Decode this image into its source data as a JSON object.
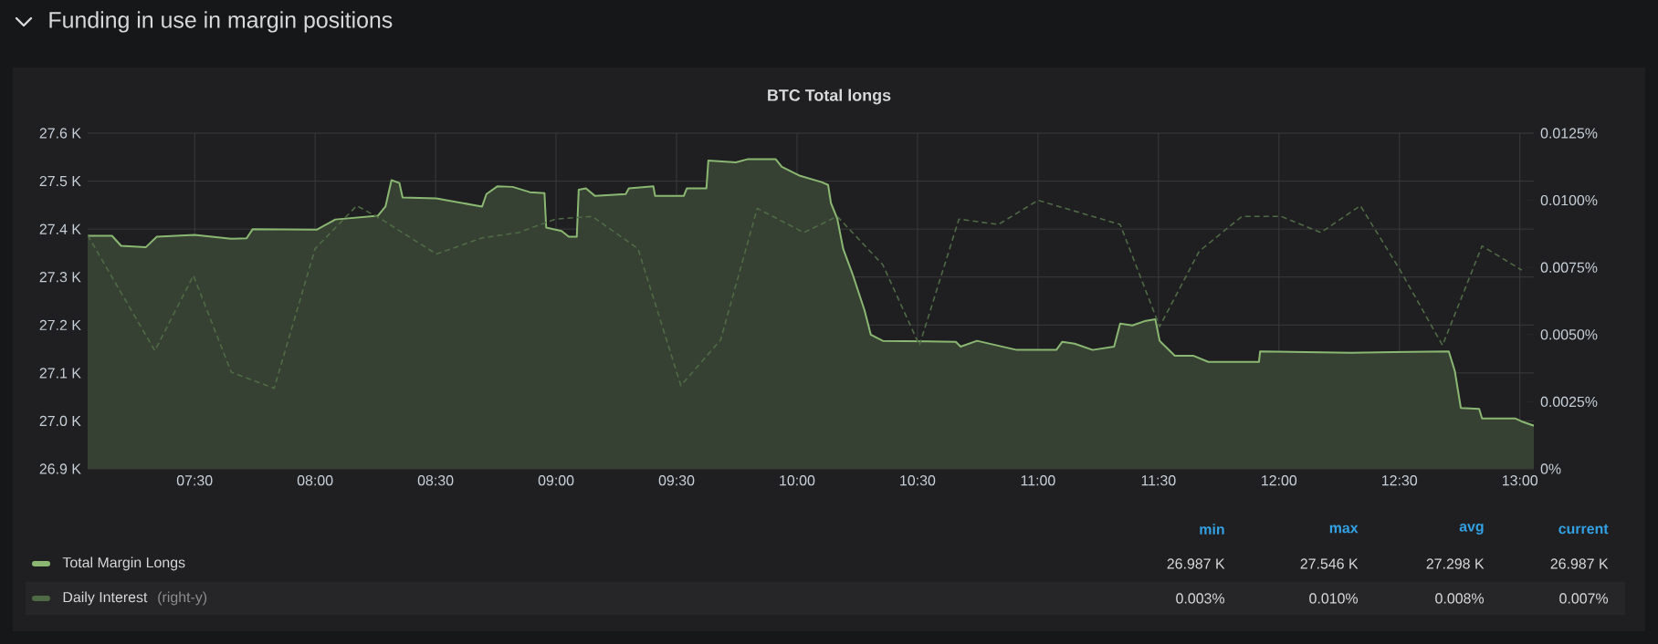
{
  "chart_data": {
    "type": "area",
    "title": "Funding in use in margin positions",
    "subtitle": "BTC Total longs",
    "xlim": [
      7.056,
      13.058
    ],
    "xticks": [
      {
        "value": 7.5,
        "label": "07:30"
      },
      {
        "value": 8,
        "label": "08:00"
      },
      {
        "value": 8.5,
        "label": "08:30"
      },
      {
        "value": 9,
        "label": "09:00"
      },
      {
        "value": 9.5,
        "label": "09:30"
      },
      {
        "value": 10,
        "label": "10:00"
      },
      {
        "value": 10.5,
        "label": "10:30"
      },
      {
        "value": 11,
        "label": "11:00"
      },
      {
        "value": 11.5,
        "label": "11:30"
      },
      {
        "value": 12,
        "label": "12:00"
      },
      {
        "value": 12.5,
        "label": "12:30"
      },
      {
        "value": 13,
        "label": "13:00"
      }
    ],
    "ylim": [
      26.9,
      27.6
    ],
    "yticks": [
      {
        "value": 26.9,
        "label": "26.9 K"
      },
      {
        "value": 27.0,
        "label": "27.0 K"
      },
      {
        "value": 27.1,
        "label": "27.1 K"
      },
      {
        "value": 27.2,
        "label": "27.2 K"
      },
      {
        "value": 27.3,
        "label": "27.3 K"
      },
      {
        "value": 27.4,
        "label": "27.4 K"
      },
      {
        "value": 27.5,
        "label": "27.5 K"
      },
      {
        "value": 27.6,
        "label": "27.6 K"
      }
    ],
    "y2lim": [
      0,
      0.0125
    ],
    "y2ticks": [
      {
        "value": 0,
        "label": "0%"
      },
      {
        "value": 0.0025,
        "label": "0.0025%"
      },
      {
        "value": 0.005,
        "label": "0.0050%"
      },
      {
        "value": 0.0075,
        "label": "0.0075%"
      },
      {
        "value": 0.01,
        "label": "0.0100%"
      },
      {
        "value": 0.0125,
        "label": "0.0125%"
      }
    ],
    "grid": true,
    "legend": "bottom",
    "series": [
      {
        "name": "Total Margin Longs",
        "line_style": "solid",
        "color": "#8ab872",
        "x": [
          7.056,
          7.157,
          7.195,
          7.297,
          7.343,
          7.5,
          7.652,
          7.716,
          7.741,
          8.008,
          8.084,
          8.261,
          8.292,
          8.317,
          8.35,
          8.363,
          8.503,
          8.693,
          8.711,
          8.756,
          8.82,
          8.891,
          8.952,
          8.959,
          9.023,
          9.053,
          9.086,
          9.094,
          9.124,
          9.162,
          9.289,
          9.302,
          9.404,
          9.411,
          9.53,
          9.543,
          9.624,
          9.632,
          9.746,
          9.797,
          9.911,
          9.937,
          10.013,
          10.102,
          10.129,
          10.141,
          10.167,
          10.192,
          10.23,
          10.28,
          10.306,
          10.356,
          10.659,
          10.679,
          10.747,
          10.912,
          11.076,
          11.101,
          11.152,
          11.227,
          11.316,
          11.341,
          11.392,
          11.442,
          11.487,
          11.505,
          11.568,
          11.644,
          11.707,
          11.917,
          11.922,
          12.3,
          12.705,
          12.73,
          12.755,
          12.831,
          12.843,
          12.982,
          13.007,
          13.058
        ],
        "values": [
          27.386,
          27.386,
          27.365,
          27.362,
          27.384,
          27.388,
          27.38,
          27.381,
          27.4,
          27.399,
          27.42,
          27.428,
          27.447,
          27.502,
          27.496,
          27.466,
          27.464,
          27.447,
          27.473,
          27.489,
          27.488,
          27.477,
          27.475,
          27.403,
          27.396,
          27.384,
          27.384,
          27.482,
          27.485,
          27.469,
          27.473,
          27.485,
          27.489,
          27.469,
          27.469,
          27.485,
          27.485,
          27.543,
          27.539,
          27.546,
          27.546,
          27.53,
          27.511,
          27.498,
          27.492,
          27.454,
          27.422,
          27.358,
          27.307,
          27.231,
          27.18,
          27.167,
          27.165,
          27.155,
          27.167,
          27.148,
          27.148,
          27.165,
          27.161,
          27.148,
          27.155,
          27.203,
          27.199,
          27.208,
          27.212,
          27.167,
          27.136,
          27.136,
          27.123,
          27.123,
          27.145,
          27.142,
          27.145,
          27.104,
          27.027,
          27.025,
          27.005,
          27.005,
          26.999,
          26.99
        ]
      },
      {
        "name": "Daily Interest",
        "type": "line",
        "axis": "y2",
        "line_style": "dashed",
        "color": "#4f6b45",
        "x": [
          7.056,
          7.335,
          7.495,
          7.652,
          7.83,
          8.0,
          8.173,
          8.274,
          8.503,
          8.693,
          8.845,
          8.997,
          9.15,
          9.34,
          9.518,
          9.683,
          9.835,
          10.028,
          10.167,
          10.356,
          10.508,
          10.672,
          10.836,
          11.0,
          11.341,
          11.505,
          11.669,
          11.846,
          12.01,
          12.174,
          12.338,
          12.503,
          12.679,
          12.843,
          13.008
        ],
        "values": [
          0.0087,
          0.0044,
          0.0072,
          0.0036,
          0.003,
          0.0082,
          0.0098,
          0.0093,
          0.008,
          0.0086,
          0.0088,
          0.0093,
          0.0094,
          0.0082,
          0.0031,
          0.0048,
          0.0097,
          0.0088,
          0.0094,
          0.0076,
          0.0046,
          0.0093,
          0.0091,
          0.01,
          0.0091,
          0.0053,
          0.0081,
          0.0094,
          0.0094,
          0.0088,
          0.0098,
          0.0074,
          0.0046,
          0.0083,
          0.0074
        ]
      }
    ],
    "annotations": [
      "min",
      "max",
      "avg",
      "current",
      "26.987 K",
      "27.546 K",
      "27.298 K",
      "26.987 K",
      "0.003%",
      "0.010%",
      "0.008%",
      "0.007%",
      "(right-y)"
    ]
  }
}
